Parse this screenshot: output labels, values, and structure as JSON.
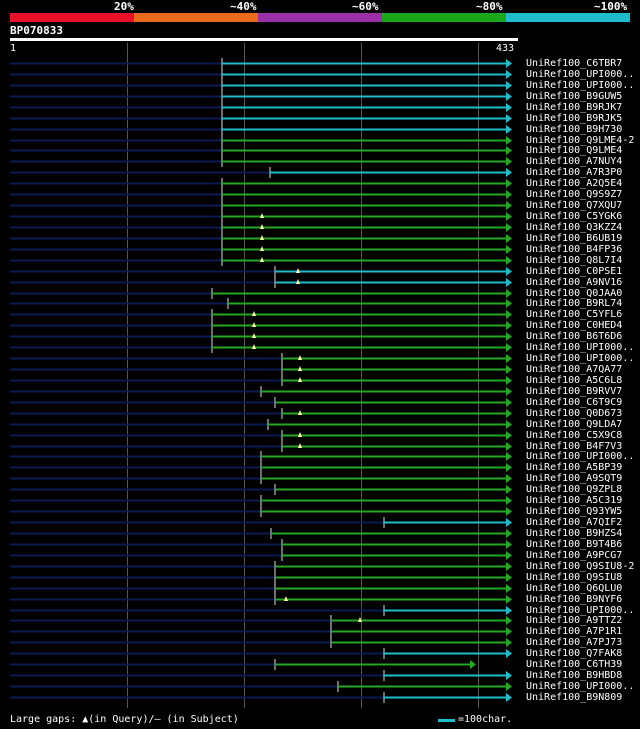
{
  "percent_labels": [
    "20%",
    "~40%",
    "~60%",
    "~80%",
    "~100%"
  ],
  "identity_colors": [
    "#e8102a",
    "#e86a1a",
    "#9a2fa8",
    "#1aa81a",
    "#1fbccc"
  ],
  "query_id": "BP070833",
  "query_start": "1",
  "query_length": 433,
  "query_end": "433",
  "colors": {
    "navy": "#0a1a52",
    "green": "#22a822",
    "cyan": "#1fbccc",
    "gap_marker": "#ffffa0"
  },
  "hits": [
    {
      "label": "UniRef100_C6TBR7",
      "start": 222,
      "end": 512,
      "color": "cyan"
    },
    {
      "label": "UniRef100_UPI000..",
      "start": 222,
      "end": 512,
      "color": "cyan"
    },
    {
      "label": "UniRef100_UPI000..",
      "start": 222,
      "end": 512,
      "color": "cyan"
    },
    {
      "label": "UniRef100_B9GUW5",
      "start": 222,
      "end": 512,
      "color": "cyan"
    },
    {
      "label": "UniRef100_B9RJK7",
      "start": 222,
      "end": 512,
      "color": "cyan"
    },
    {
      "label": "UniRef100_B9RJK5",
      "start": 222,
      "end": 512,
      "color": "cyan"
    },
    {
      "label": "UniRef100_B9H730",
      "start": 222,
      "end": 512,
      "color": "cyan"
    },
    {
      "label": "UniRef100_Q9LME4-2",
      "start": 222,
      "end": 512,
      "color": "green"
    },
    {
      "label": "UniRef100_Q9LME4",
      "start": 222,
      "end": 512,
      "color": "green"
    },
    {
      "label": "UniRef100_A7NUY4",
      "start": 222,
      "end": 512,
      "color": "green"
    },
    {
      "label": "UniRef100_A7R3P0",
      "start": 270,
      "end": 512,
      "color": "cyan"
    },
    {
      "label": "UniRef100_A2Q5E4",
      "start": 222,
      "end": 512,
      "color": "green"
    },
    {
      "label": "UniRef100_Q9S9Z7",
      "start": 222,
      "end": 512,
      "color": "green"
    },
    {
      "label": "UniRef100_Q7XQU7",
      "start": 222,
      "end": 512,
      "color": "green"
    },
    {
      "label": "UniRef100_C5YGK6",
      "start": 222,
      "end": 512,
      "color": "green",
      "gap": 262
    },
    {
      "label": "UniRef100_Q3KZZ4",
      "start": 222,
      "end": 512,
      "color": "green",
      "gap": 262
    },
    {
      "label": "UniRef100_B6UB19",
      "start": 222,
      "end": 512,
      "color": "green",
      "gap": 262
    },
    {
      "label": "UniRef100_B4FP36",
      "start": 222,
      "end": 512,
      "color": "green",
      "gap": 262
    },
    {
      "label": "UniRef100_Q8L7I4",
      "start": 222,
      "end": 512,
      "color": "green",
      "gap": 262
    },
    {
      "label": "UniRef100_C0PSE1",
      "start": 275,
      "end": 512,
      "color": "cyan",
      "gap": 298
    },
    {
      "label": "UniRef100_A9NV16",
      "start": 275,
      "end": 512,
      "color": "cyan",
      "gap": 298
    },
    {
      "label": "UniRef100_Q0JAA0",
      "start": 212,
      "end": 512,
      "color": "green"
    },
    {
      "label": "UniRef100_B9RL74",
      "start": 228,
      "end": 512,
      "color": "green"
    },
    {
      "label": "UniRef100_C5YFL6",
      "start": 212,
      "end": 512,
      "color": "green",
      "gap": 254
    },
    {
      "label": "UniRef100_C0HED4",
      "start": 212,
      "end": 512,
      "color": "green",
      "gap": 254
    },
    {
      "label": "UniRef100_B6T6D6",
      "start": 212,
      "end": 512,
      "color": "green",
      "gap": 254
    },
    {
      "label": "UniRef100_UPI000..",
      "start": 212,
      "end": 512,
      "color": "green",
      "gap": 254
    },
    {
      "label": "UniRef100_UPI000..",
      "start": 282,
      "end": 512,
      "color": "green",
      "gap": 300
    },
    {
      "label": "UniRef100_A7QA77",
      "start": 282,
      "end": 512,
      "color": "green",
      "gap": 300
    },
    {
      "label": "UniRef100_A5C6L8",
      "start": 282,
      "end": 512,
      "color": "green",
      "gap": 300
    },
    {
      "label": "UniRef100_B9RVV7",
      "start": 261,
      "end": 512,
      "color": "green"
    },
    {
      "label": "UniRef100_C6T9C9",
      "start": 275,
      "end": 512,
      "color": "green"
    },
    {
      "label": "UniRef100_Q0D673",
      "start": 282,
      "end": 512,
      "color": "green",
      "gap": 300
    },
    {
      "label": "UniRef100_Q9LDA7",
      "start": 268,
      "end": 512,
      "color": "green"
    },
    {
      "label": "UniRef100_C5X9C8",
      "start": 282,
      "end": 512,
      "color": "green",
      "gap": 300
    },
    {
      "label": "UniRef100_B4F7V3",
      "start": 282,
      "end": 512,
      "color": "green",
      "gap": 300
    },
    {
      "label": "UniRef100_UPI000..",
      "start": 261,
      "end": 512,
      "color": "green"
    },
    {
      "label": "UniRef100_A5BP39",
      "start": 261,
      "end": 512,
      "color": "green"
    },
    {
      "label": "UniRef100_A9SQT9",
      "start": 261,
      "end": 512,
      "color": "green"
    },
    {
      "label": "UniRef100_Q9ZPL8",
      "start": 275,
      "end": 512,
      "color": "green"
    },
    {
      "label": "UniRef100_A5C319",
      "start": 261,
      "end": 512,
      "color": "green"
    },
    {
      "label": "UniRef100_Q93YW5",
      "start": 261,
      "end": 512,
      "color": "green"
    },
    {
      "label": "UniRef100_A7QIF2",
      "start": 384,
      "end": 512,
      "color": "cyan"
    },
    {
      "label": "UniRef100_B9HZS4",
      "start": 271,
      "end": 512,
      "color": "green"
    },
    {
      "label": "UniRef100_B9T4B6",
      "start": 282,
      "end": 512,
      "color": "green"
    },
    {
      "label": "UniRef100_A9PCG7",
      "start": 282,
      "end": 512,
      "color": "green"
    },
    {
      "label": "UniRef100_Q9SIU8-2",
      "start": 275,
      "end": 512,
      "color": "green"
    },
    {
      "label": "UniRef100_Q9SIU8",
      "start": 275,
      "end": 512,
      "color": "green"
    },
    {
      "label": "UniRef100_Q6QLU0",
      "start": 275,
      "end": 512,
      "color": "green"
    },
    {
      "label": "UniRef100_B9NYF6",
      "start": 275,
      "end": 512,
      "color": "green",
      "gap": 286
    },
    {
      "label": "UniRef100_UPI000..",
      "start": 384,
      "end": 512,
      "color": "cyan"
    },
    {
      "label": "UniRef100_A9TTZ2",
      "start": 331,
      "end": 512,
      "color": "green",
      "gap": 360
    },
    {
      "label": "UniRef100_A7P1R1",
      "start": 331,
      "end": 512,
      "color": "green"
    },
    {
      "label": "UniRef100_A7PJ73",
      "start": 331,
      "end": 512,
      "color": "green"
    },
    {
      "label": "UniRef100_Q7FAK8",
      "start": 384,
      "end": 512,
      "color": "cyan"
    },
    {
      "label": "UniRef100_C6TH39",
      "start": 275,
      "end": 476,
      "color": "green"
    },
    {
      "label": "UniRef100_B9HBD8",
      "start": 384,
      "end": 512,
      "color": "cyan"
    },
    {
      "label": "UniRef100_UPI000..",
      "start": 338,
      "end": 512,
      "color": "green"
    },
    {
      "label": "UniRef100_B9N809",
      "start": 384,
      "end": 512,
      "color": "cyan"
    }
  ],
  "footer": {
    "large_gaps_text": "Large gaps: ▲(in Query)/– (in Subject)",
    "scale_text": "=100char."
  }
}
